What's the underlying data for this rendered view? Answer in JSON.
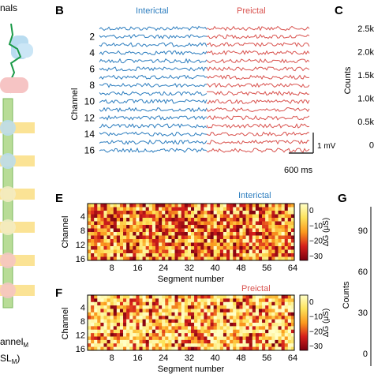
{
  "panel_left": {
    "label_top": "nals",
    "label_bottom1": "annel",
    "label_bottom1_sub": "M",
    "label_bottom2": "SL",
    "label_bottom2_sub": "M",
    "label_bottom2_end": ")"
  },
  "panel_b": {
    "letter": "B",
    "label_interictal": "Interictal",
    "label_preictal": "Preictal",
    "ylabel": "Channel",
    "ticks": [
      "2",
      "4",
      "6",
      "8",
      "10",
      "12",
      "14",
      "16"
    ],
    "scale_v": "1 mV",
    "scale_t": "600 ms",
    "colors": {
      "interictal": "#2e7ebf",
      "preictal": "#d9534f"
    }
  },
  "panel_c": {
    "letter": "C",
    "ylabel": "Counts",
    "ticks": [
      "2.5k",
      "2.0k",
      "1.5k",
      "1.0k",
      "0.5k",
      "0"
    ]
  },
  "panel_e": {
    "letter": "E",
    "title": "Interictal",
    "ylabel": "Channel",
    "xlabel": "Segment number",
    "yticks": [
      "4",
      "8",
      "12",
      "16"
    ],
    "xticks": [
      "8",
      "16",
      "24",
      "32",
      "40",
      "48",
      "56",
      "64"
    ],
    "cbar_label": "ΔG (μS)",
    "cbar_ticks": [
      "0",
      "−10",
      "−20",
      "−30"
    ]
  },
  "panel_f": {
    "letter": "F",
    "title": "Preictal",
    "ylabel": "Channel",
    "xlabel": "Segment number",
    "yticks": [
      "4",
      "8",
      "12",
      "16"
    ],
    "xticks": [
      "8",
      "16",
      "24",
      "32",
      "40",
      "48",
      "56",
      "64"
    ],
    "cbar_label": "ΔG (μS)",
    "cbar_ticks": [
      "0",
      "−10",
      "−20",
      "−30"
    ]
  },
  "panel_g": {
    "letter": "G",
    "ylabel": "Counts",
    "ticks": [
      "90",
      "60",
      "30",
      "0"
    ]
  },
  "chart_data": [
    {
      "type": "line",
      "title": "",
      "series": [
        {
          "name": "Interictal"
        },
        {
          "name": "Preictal"
        }
      ],
      "ylabel": "Channel",
      "channels": 16
    },
    {
      "type": "heatmap",
      "title": "Interictal",
      "xlabel": "Segment number",
      "ylabel": "Channel",
      "x_range": [
        1,
        64
      ],
      "y_range": [
        1,
        16
      ],
      "color_range": [
        -35,
        5
      ],
      "colorbar_label": "ΔG (μS)"
    },
    {
      "type": "heatmap",
      "title": "Preictal",
      "xlabel": "Segment number",
      "ylabel": "Channel",
      "x_range": [
        1,
        64
      ],
      "y_range": [
        1,
        16
      ],
      "color_range": [
        -35,
        5
      ],
      "colorbar_label": "ΔG (μS)"
    }
  ]
}
